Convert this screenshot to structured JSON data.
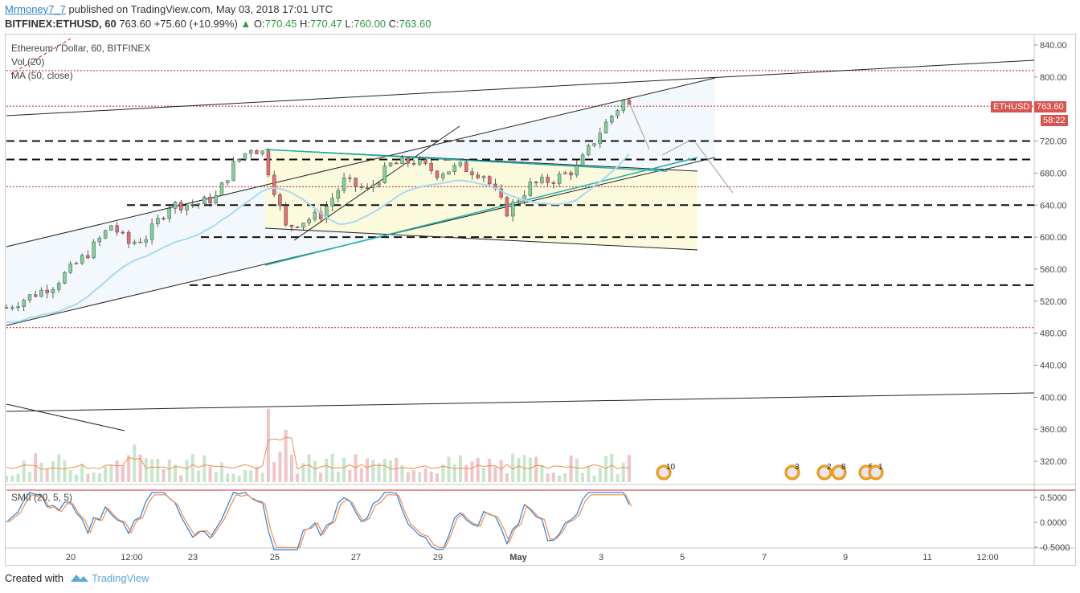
{
  "header": {
    "user": "Mrmoney7_7",
    "published": "published on TradingView.com, May 03, 2018 17:01 UTC",
    "symbol": "BITFINEX:ETHUSD, 60",
    "last": "763.60",
    "change": "+75.60 (+10.99%)",
    "o_label": "O:",
    "o": "770.45",
    "h_label": "H:",
    "h": "770.47",
    "l_label": "L:",
    "l": "760.00",
    "c_label": "C:",
    "c": "763.60"
  },
  "legend": {
    "title": "Ethereum / Dollar, 60, BITFINEX",
    "vol": "Vol (20)",
    "ma": "MA (50, close)",
    "smii": "SMII (20, 5, 5)"
  },
  "price_tag": {
    "label": "ETHUSD",
    "value": "763.60",
    "countdown": "58:22"
  },
  "footer": {
    "created": "Created with",
    "brand": "TradingView"
  },
  "colors": {
    "up": "#53b987",
    "down": "#eb4d5c",
    "ma": "#aad8f0",
    "teal": "#1ab0b0",
    "red_dotted": "#b22222",
    "price_tag": "#d9534f"
  },
  "events": [
    {
      "label": "10"
    },
    {
      "label": "3"
    },
    {
      "label": "2"
    },
    {
      "label": "8"
    },
    {
      "label": "5"
    },
    {
      "label": "1"
    }
  ],
  "chart_data": {
    "type": "candlestick",
    "symbol": "ETHUSD",
    "interval": "60",
    "y_ticks": [
      "840.00",
      "800.00",
      "760.00",
      "720.00",
      "680.00",
      "640.00",
      "600.00",
      "560.00",
      "520.00",
      "480.00",
      "440.00",
      "400.00",
      "360.00",
      "320.00"
    ],
    "ylim": [
      300,
      850
    ],
    "smii_ticks": [
      "0.5000",
      "0.0000",
      "-0.5000"
    ],
    "x_ticks": [
      "20",
      "12:00",
      "23",
      "25",
      "27",
      "29",
      "May",
      "3",
      "5",
      "7",
      "9",
      "11",
      "12:00"
    ],
    "horizontal_levels": [
      {
        "price": 720,
        "style": "dashed"
      },
      {
        "price": 697,
        "style": "dashed"
      },
      {
        "price": 640,
        "style": "dashed"
      },
      {
        "price": 600,
        "style": "dashed"
      },
      {
        "price": 540,
        "style": "dashed"
      },
      {
        "price": 808,
        "style": "dotted-red"
      },
      {
        "price": 763.6,
        "style": "dotted-red"
      },
      {
        "price": 663,
        "style": "dotted-red"
      },
      {
        "price": 487,
        "style": "dotted-red"
      }
    ],
    "price_path": [
      [
        0,
        512
      ],
      [
        8,
        540
      ],
      [
        14,
        580
      ],
      [
        18,
        615
      ],
      [
        21,
        592
      ],
      [
        24,
        600
      ],
      [
        28,
        640
      ],
      [
        33,
        642
      ],
      [
        36,
        650
      ],
      [
        39,
        690
      ],
      [
        42,
        712
      ],
      [
        44,
        706
      ],
      [
        46,
        660
      ],
      [
        48,
        612
      ],
      [
        50,
        618
      ],
      [
        54,
        628
      ],
      [
        58,
        670
      ],
      [
        62,
        658
      ],
      [
        66,
        690
      ],
      [
        70,
        695
      ],
      [
        74,
        680
      ],
      [
        78,
        688
      ],
      [
        82,
        678
      ],
      [
        86,
        632
      ],
      [
        90,
        665
      ],
      [
        94,
        672
      ],
      [
        98,
        686
      ],
      [
        102,
        732
      ],
      [
        104,
        752
      ],
      [
        106,
        770
      ],
      [
        107,
        763.6
      ]
    ]
  }
}
